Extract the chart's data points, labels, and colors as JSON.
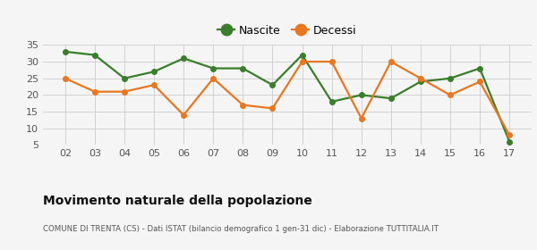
{
  "years": [
    "02",
    "03",
    "04",
    "05",
    "06",
    "07",
    "08",
    "09",
    "10",
    "11",
    "12",
    "13",
    "14",
    "15",
    "16",
    "17"
  ],
  "nascite": [
    33,
    32,
    25,
    27,
    31,
    28,
    28,
    23,
    32,
    18,
    20,
    19,
    24,
    25,
    28,
    6
  ],
  "decessi": [
    25,
    21,
    21,
    23,
    14,
    25,
    17,
    16,
    30,
    30,
    13,
    30,
    25,
    20,
    24,
    8
  ],
  "nascite_color": "#3a7d2c",
  "decessi_color": "#e87722",
  "background_color": "#f5f5f5",
  "grid_color": "#cccccc",
  "title": "Movimento naturale della popolazione",
  "subtitle": "COMUNE DI TRENTA (CS) - Dati ISTAT (bilancio demografico 1 gen-31 dic) - Elaborazione TUTTITALIA.IT",
  "ylabel_min": 5,
  "ylabel_max": 35,
  "ylabel_step": 5,
  "legend_nascite": "Nascite",
  "legend_decessi": "Decessi",
  "marker_size": 4,
  "line_width": 1.6
}
